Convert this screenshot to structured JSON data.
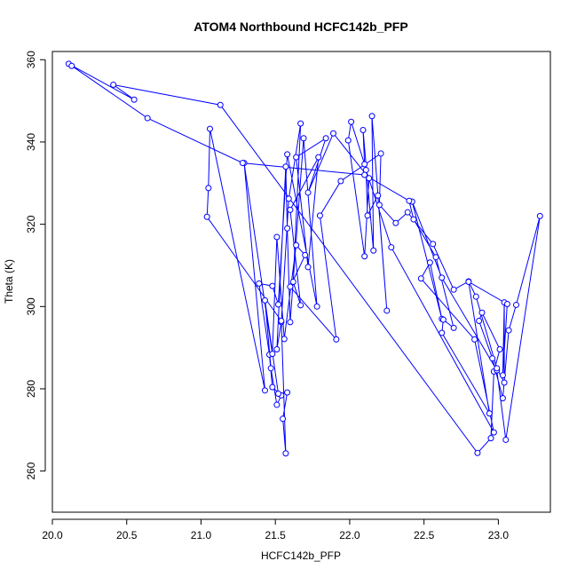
{
  "chart_data": {
    "type": "line",
    "title": "ATOM4 Northbound HCFC142b_PFP",
    "xlabel": "HCFC142b_PFP",
    "ylabel": "Theta (K)",
    "xlim": [
      20.0,
      23.35
    ],
    "ylim": [
      250,
      362
    ],
    "xticks": [
      "20.0",
      "20.5",
      "21.0",
      "21.5",
      "22.0",
      "22.5",
      "23.0"
    ],
    "yticks": [
      "260",
      "280",
      "300",
      "320",
      "340",
      "360"
    ],
    "grid": false,
    "legend": "none",
    "series_color": "#0000ff",
    "points": [
      [
        20.11,
        359.0
      ],
      [
        20.55,
        350.3
      ],
      [
        20.41,
        353.9
      ],
      [
        21.13,
        349.0
      ],
      [
        22.86,
        264.4
      ],
      [
        22.95,
        268.0
      ],
      [
        22.97,
        284.2
      ],
      [
        23.01,
        289.6
      ],
      [
        22.89,
        298.5
      ],
      [
        22.87,
        296.5
      ],
      [
        22.96,
        287.4
      ],
      [
        23.03,
        277.7
      ],
      [
        23.07,
        294.2
      ],
      [
        23.12,
        300.4
      ],
      [
        23.28,
        322.0
      ],
      [
        23.05,
        267.6
      ],
      [
        22.99,
        284.5
      ],
      [
        22.62,
        307.0
      ],
      [
        22.42,
        325.5
      ],
      [
        22.62,
        297.0
      ],
      [
        22.54,
        310.7
      ],
      [
        22.48,
        306.8
      ],
      [
        22.84,
        292.0
      ],
      [
        22.97,
        269.4
      ],
      [
        22.28,
        314.4
      ],
      [
        22.11,
        333.2
      ],
      [
        22.12,
        322.1
      ],
      [
        22.19,
        327.0
      ],
      [
        22.25,
        299.0
      ],
      [
        22.15,
        346.3
      ],
      [
        22.16,
        313.6
      ],
      [
        22.09,
        342.9
      ],
      [
        22.1,
        334.6
      ],
      [
        22.01,
        344.9
      ],
      [
        21.99,
        340.4
      ],
      [
        22.1,
        312.2
      ],
      [
        22.13,
        331.2
      ],
      [
        21.89,
        342.1
      ],
      [
        21.72,
        327.7
      ],
      [
        21.84,
        340.9
      ],
      [
        21.64,
        336.3
      ],
      [
        21.72,
        309.6
      ],
      [
        21.79,
        336.3
      ],
      [
        21.6,
        323.5
      ],
      [
        21.67,
        300.3
      ],
      [
        21.62,
        306.0
      ],
      [
        21.67,
        344.5
      ],
      [
        21.59,
        326.2
      ],
      [
        21.54,
        296.2
      ],
      [
        21.51,
        289.6
      ],
      [
        21.57,
        334.0
      ],
      [
        21.58,
        319.0
      ],
      [
        21.6,
        296.2
      ],
      [
        21.69,
        340.9
      ],
      [
        21.78,
        300.0
      ],
      [
        21.58,
        337.0
      ],
      [
        21.52,
        300.5
      ],
      [
        21.48,
        305.0
      ],
      [
        21.39,
        305.6
      ],
      [
        21.46,
        288.3
      ],
      [
        21.48,
        280.4
      ],
      [
        21.54,
        278.4
      ],
      [
        21.51,
        276.1
      ],
      [
        21.47,
        285.0
      ],
      [
        21.43,
        301.5
      ],
      [
        21.52,
        278.8
      ],
      [
        21.58,
        279.1
      ],
      [
        21.55,
        272.7
      ],
      [
        21.57,
        264.3
      ],
      [
        21.54,
        296.5
      ],
      [
        21.04,
        321.8
      ],
      [
        21.05,
        328.8
      ],
      [
        21.06,
        343.2
      ],
      [
        21.43,
        279.6
      ],
      [
        21.29,
        334.9
      ],
      [
        21.48,
        288.5
      ],
      [
        21.51,
        316.9
      ],
      [
        21.56,
        292.1
      ],
      [
        21.64,
        314.9
      ],
      [
        21.7,
        312.5
      ],
      [
        21.6,
        304.8
      ],
      [
        21.91,
        292.0
      ],
      [
        21.8,
        322.1
      ],
      [
        21.94,
        330.5
      ],
      [
        22.21,
        337.2
      ],
      [
        22.2,
        324.7
      ],
      [
        22.31,
        320.3
      ],
      [
        22.39,
        322.9
      ],
      [
        22.56,
        315.2
      ],
      [
        22.7,
        304.1
      ],
      [
        22.8,
        306.1
      ],
      [
        22.85,
        302.4
      ],
      [
        22.99,
        285.0
      ],
      [
        23.04,
        281.5
      ],
      [
        23.04,
        301.0
      ],
      [
        23.03,
        283.3
      ],
      [
        23.06,
        300.6
      ],
      [
        22.8,
        306.0
      ],
      [
        22.94,
        274.0
      ],
      [
        22.62,
        293.6
      ],
      [
        22.63,
        296.8
      ],
      [
        22.7,
        294.8
      ],
      [
        22.58,
        312.0
      ],
      [
        22.43,
        321.2
      ],
      [
        22.4,
        325.7
      ],
      [
        22.1,
        332.0
      ],
      [
        21.28,
        334.9
      ],
      [
        20.64,
        345.8
      ],
      [
        20.13,
        358.5
      ]
    ]
  }
}
